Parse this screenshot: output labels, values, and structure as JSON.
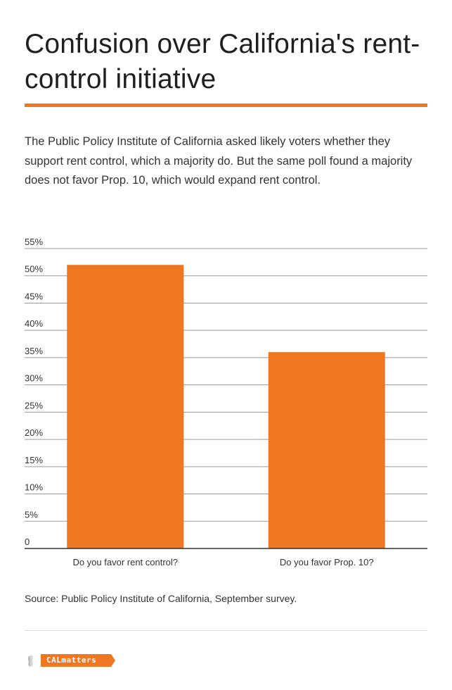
{
  "title": "Confusion over California's rent-control initiative",
  "description": "The Public Policy Institute of California asked likely voters whether they support rent control, which a majority do. But the same poll found a majority does not favor Prop. 10, which would expand rent control.",
  "source": "Source: Public Policy Institute of California, September survey.",
  "logo_text": "CALmatters",
  "colors": {
    "accent": "#f07722",
    "bar": "#f07722",
    "grid": "#9a9a9a",
    "axis": "#333333"
  },
  "chart_data": {
    "type": "bar",
    "categories": [
      "Do you favor rent control?",
      "Do you favor Prop. 10?"
    ],
    "values": [
      52,
      36
    ],
    "ylim": [
      0,
      55
    ],
    "yticks": [
      0,
      5,
      10,
      15,
      20,
      25,
      30,
      35,
      40,
      45,
      50,
      55
    ],
    "ytick_labels": [
      "0",
      "5%",
      "10%",
      "15%",
      "20%",
      "25%",
      "30%",
      "35%",
      "40%",
      "45%",
      "50%",
      "55%"
    ],
    "grid": true,
    "xlabel": "",
    "ylabel": ""
  }
}
